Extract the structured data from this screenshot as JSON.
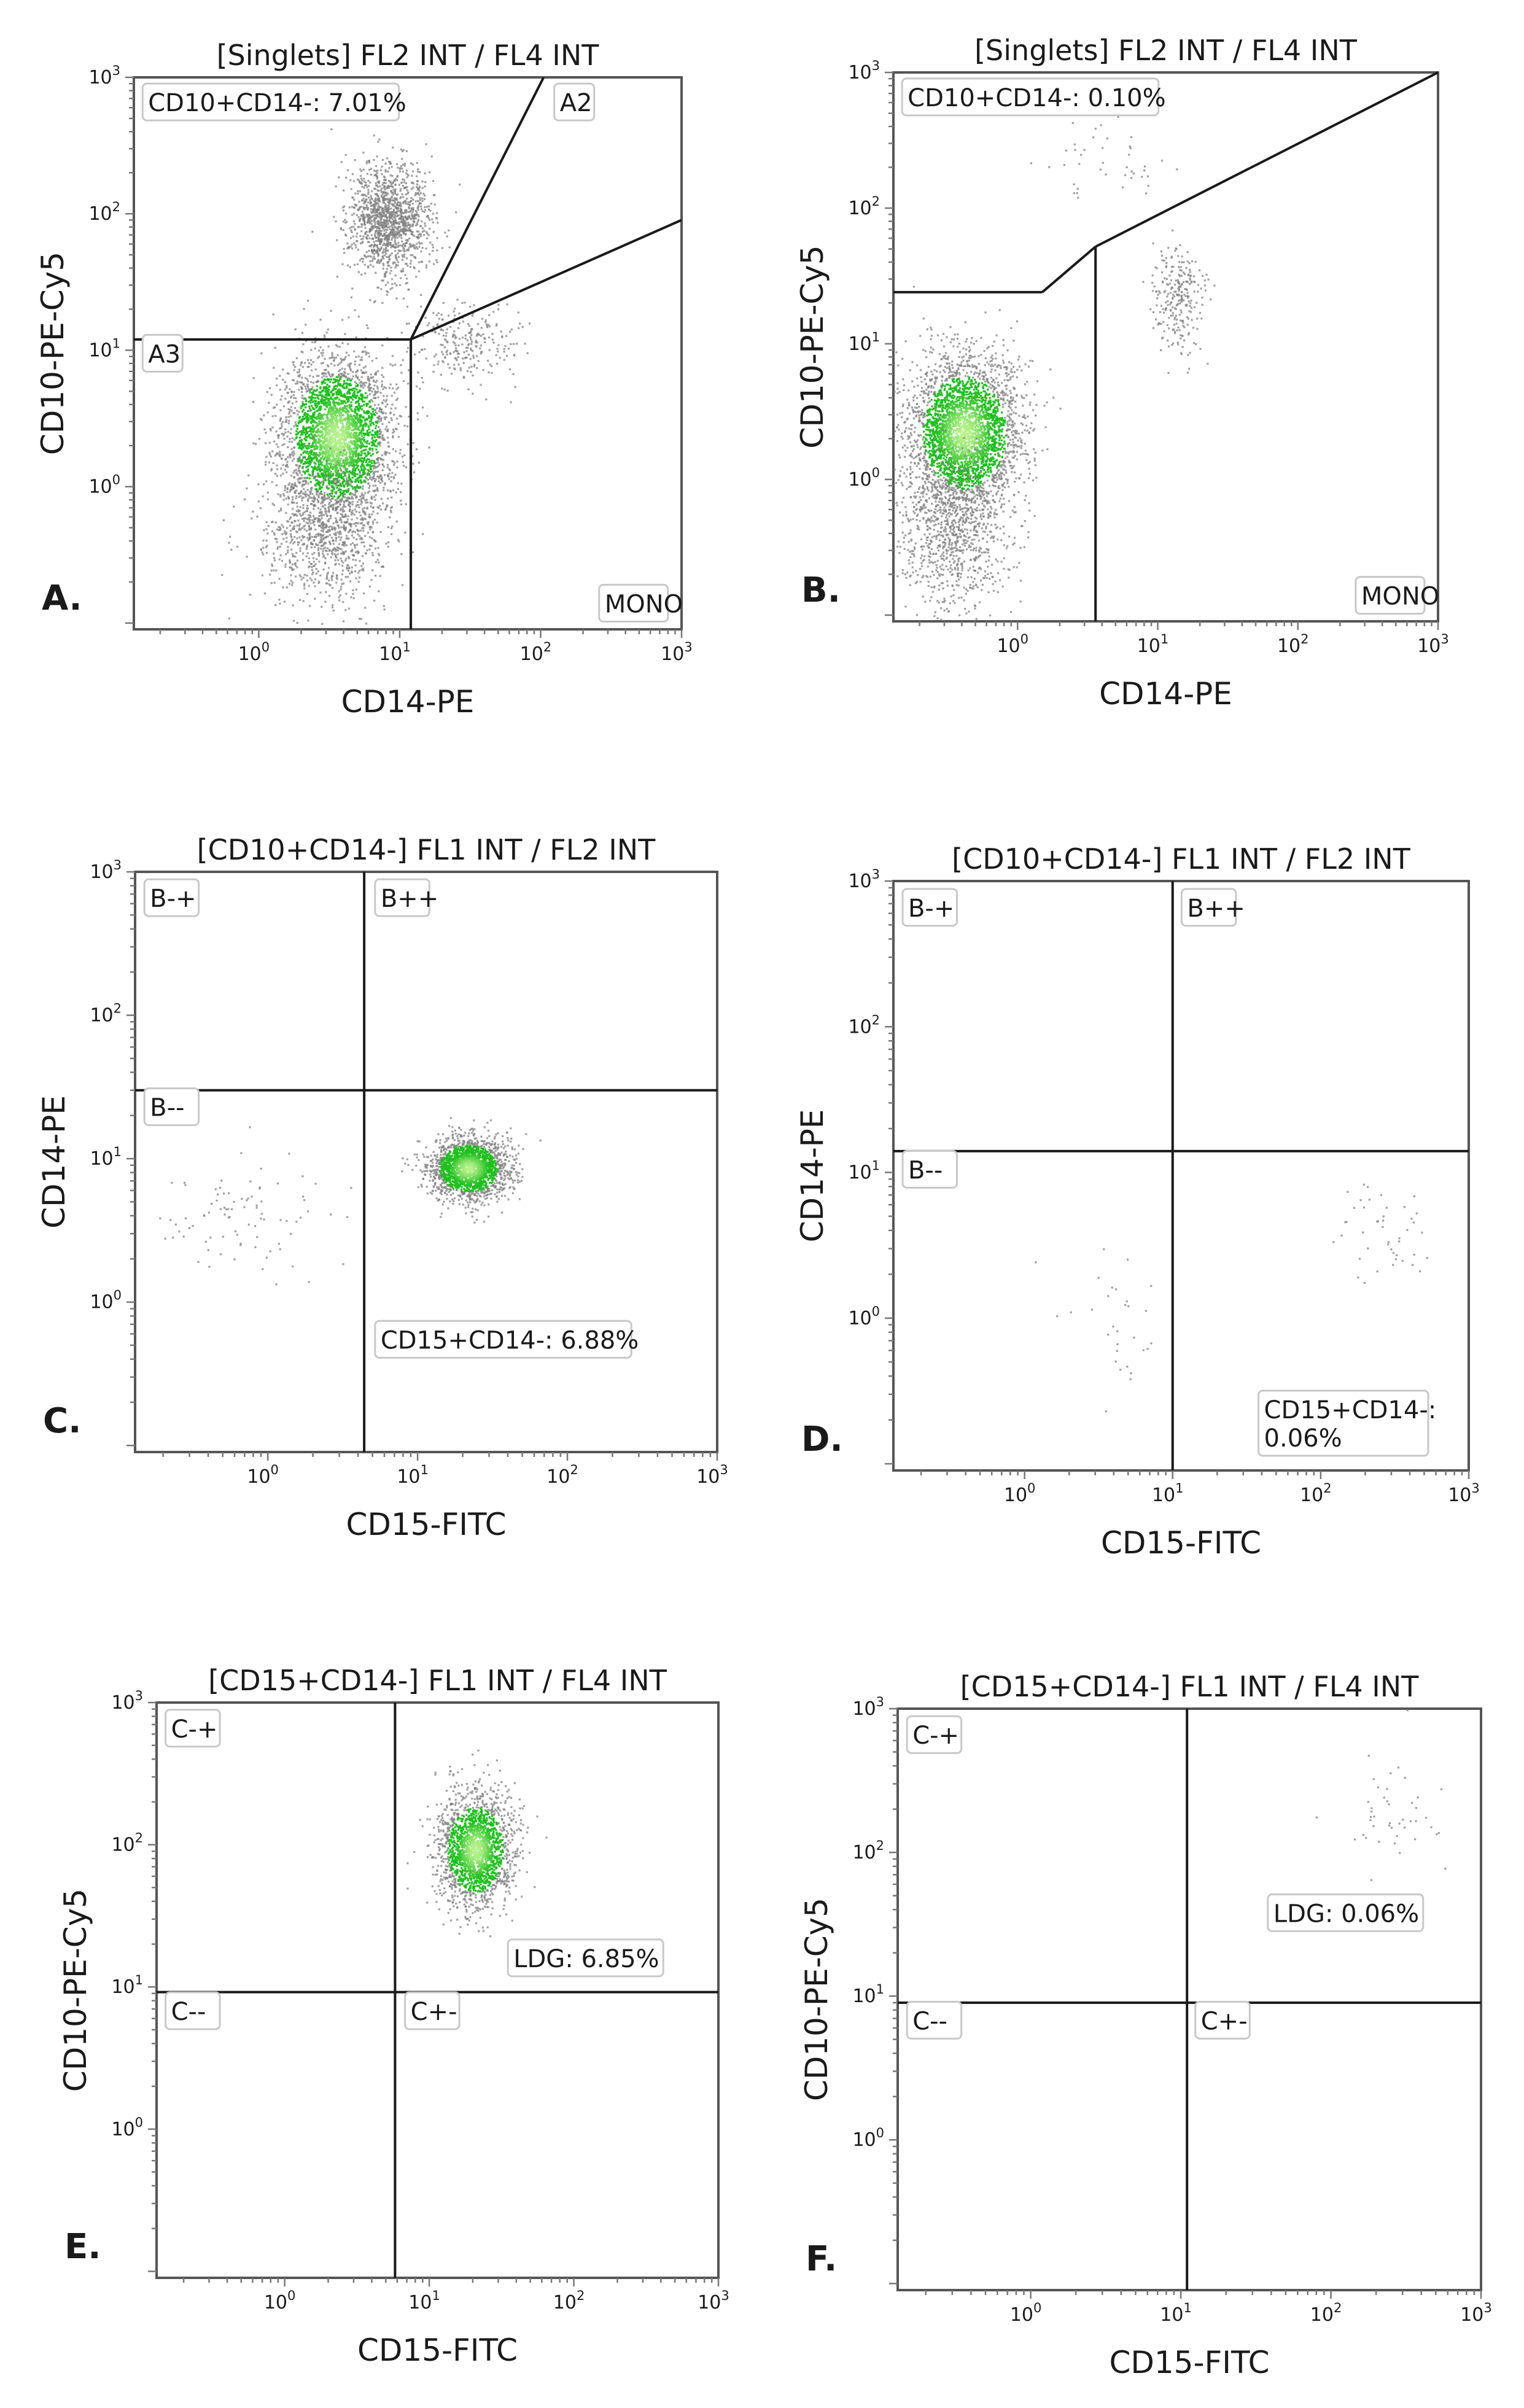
{
  "colors": {
    "event_grey": "#808080",
    "density_green": "#1fbf1f",
    "density_light": "#b8f28c"
  },
  "tick_labels": [
    "10",
    "10",
    "10",
    "10"
  ],
  "tick_exponents": [
    "0",
    "1",
    "2",
    "3"
  ],
  "chart_data": [
    {
      "type": "scatter",
      "panel": "A.",
      "title": "[Singlets] FL2 INT / FL4 INT",
      "xlabel": "CD14-PE",
      "ylabel": "CD10-PE-Cy5",
      "log_x": true,
      "log_y": true,
      "xlim": [
        0.13,
        1000
      ],
      "ylim": [
        0.09,
        1000
      ],
      "gate_lines": [
        [
          [
            0.13,
            12
          ],
          [
            12,
            12
          ]
        ],
        [
          [
            12,
            12
          ],
          [
            12,
            0.09
          ]
        ],
        [
          [
            12,
            12
          ],
          [
            105,
            1000
          ]
        ],
        [
          [
            12,
            12
          ],
          [
            1000,
            90
          ]
        ]
      ],
      "gates": [
        {
          "label": "CD10+CD14-: 7.01%",
          "x": 0.15,
          "y": 660,
          "anchor": "start"
        },
        {
          "label": "A2",
          "x": 125,
          "y": 660,
          "anchor": "start"
        },
        {
          "label": "A3",
          "x": 0.15,
          "y": 9.5,
          "anchor": "start"
        },
        {
          "label": "MONO",
          "x": 800,
          "y": 0.14,
          "anchor": "end"
        }
      ],
      "populations": [
        {
          "cx": 8.5,
          "cy": 90,
          "sx": 0.14,
          "sy": 0.21,
          "n": 1400,
          "density": 0.45
        },
        {
          "cx": 3.6,
          "cy": 2.3,
          "sx": 0.2,
          "sy": 0.3,
          "n": 3200,
          "density": 1
        },
        {
          "cx": 3.0,
          "cy": 0.45,
          "sx": 0.22,
          "sy": 0.28,
          "n": 900,
          "density": 0.2
        },
        {
          "cx": 28,
          "cy": 11,
          "sx": 0.2,
          "sy": 0.15,
          "n": 260,
          "density": 0.1
        }
      ]
    },
    {
      "type": "scatter",
      "panel": "B.",
      "title": "[Singlets] FL2 INT / FL4 INT",
      "xlabel": "CD14-PE",
      "ylabel": "CD10-PE-Cy5",
      "log_x": true,
      "log_y": true,
      "xlim": [
        0.13,
        1000
      ],
      "ylim": [
        0.09,
        1000
      ],
      "gate_lines": [
        [
          [
            0.13,
            24
          ],
          [
            1.5,
            24
          ]
        ],
        [
          [
            1.5,
            24
          ],
          [
            3.6,
            52
          ]
        ],
        [
          [
            3.6,
            52
          ],
          [
            1000,
            1000
          ]
        ],
        [
          [
            3.6,
            52
          ],
          [
            3.6,
            0.09
          ]
        ]
      ],
      "gates": [
        {
          "label": "CD10+CD14-: 0.10%",
          "x": 0.15,
          "y": 660,
          "anchor": "start"
        },
        {
          "label": "MONO",
          "x": 800,
          "y": 0.14,
          "anchor": "end"
        }
      ],
      "populations": [
        {
          "cx": 0.42,
          "cy": 2.2,
          "sx": 0.2,
          "sy": 0.28,
          "n": 3200,
          "density": 1
        },
        {
          "cx": 0.35,
          "cy": 0.4,
          "sx": 0.2,
          "sy": 0.3,
          "n": 900,
          "density": 0.2
        },
        {
          "cx": 14,
          "cy": 22,
          "sx": 0.09,
          "sy": 0.2,
          "n": 260,
          "density": 0.1
        },
        {
          "cx": 4,
          "cy": 230,
          "sx": 0.25,
          "sy": 0.2,
          "n": 45,
          "density": 0.05
        }
      ]
    },
    {
      "type": "scatter",
      "panel": "C.",
      "title": "[CD10+CD14-] FL1 INT / FL2 INT",
      "xlabel": "CD15-FITC",
      "ylabel": "CD14-PE",
      "log_x": true,
      "log_y": true,
      "xlim": [
        0.13,
        1000
      ],
      "ylim": [
        0.09,
        1000
      ],
      "gate_lines": [
        [
          [
            4.4,
            1000
          ],
          [
            4.4,
            0.09
          ]
        ],
        [
          [
            0.13,
            30
          ],
          [
            1000,
            30
          ]
        ]
      ],
      "gates": [
        {
          "label": "B-+",
          "x": 0.15,
          "y": 660,
          "anchor": "start"
        },
        {
          "label": "B++",
          "x": 5.2,
          "y": 660,
          "anchor": "start"
        },
        {
          "label": "B--",
          "x": 0.15,
          "y": 23,
          "anchor": "start"
        },
        {
          "label": "CD15+CD14-: 6.88%",
          "x": 5.2,
          "y": 0.55,
          "anchor": "start"
        }
      ],
      "populations": [
        {
          "cx": 22,
          "cy": 8.5,
          "sx": 0.13,
          "sy": 0.11,
          "n": 2000,
          "density": 1
        },
        {
          "cx": 0.8,
          "cy": 4,
          "sx": 0.3,
          "sy": 0.22,
          "n": 90,
          "density": 0.05
        }
      ]
    },
    {
      "type": "scatter",
      "panel": "D.",
      "title": "[CD10+CD14-] FL1 INT / FL2 INT",
      "xlabel": "CD15-FITC",
      "ylabel": "CD14-PE",
      "log_x": true,
      "log_y": true,
      "xlim": [
        0.13,
        1000
      ],
      "ylim": [
        0.09,
        1000
      ],
      "gate_lines": [
        [
          [
            10,
            1000
          ],
          [
            10,
            0.09
          ]
        ],
        [
          [
            0.13,
            14
          ],
          [
            1000,
            14
          ]
        ]
      ],
      "gates": [
        {
          "label": "B-+",
          "x": 0.15,
          "y": 660,
          "anchor": "start"
        },
        {
          "label": "B++",
          "x": 11.5,
          "y": 660,
          "anchor": "start"
        },
        {
          "label": "B--",
          "x": 0.15,
          "y": 10.5,
          "anchor": "start"
        },
        {
          "label": "CD15+CD14-:",
          "label2": "0.06%",
          "x": 38,
          "y": 0.19,
          "anchor": "start"
        }
      ],
      "populations": [
        {
          "cx": 230,
          "cy": 3.5,
          "sx": 0.15,
          "sy": 0.18,
          "n": 45,
          "density": 0.05
        },
        {
          "cx": 4,
          "cy": 0.9,
          "sx": 0.15,
          "sy": 0.2,
          "n": 30,
          "density": 0.05
        }
      ]
    },
    {
      "type": "scatter",
      "panel": "E.",
      "title": "[CD15+CD14-] FL1 INT / FL4 INT",
      "xlabel": "CD15-FITC",
      "ylabel": "CD10-PE-Cy5",
      "log_x": true,
      "log_y": true,
      "xlim": [
        0.13,
        1000
      ],
      "ylim": [
        0.09,
        1000
      ],
      "gate_lines": [
        [
          [
            5.8,
            1000
          ],
          [
            5.8,
            0.09
          ]
        ],
        [
          [
            0.13,
            9.2
          ],
          [
            1000,
            9.2
          ]
        ]
      ],
      "gates": [
        {
          "label": "C-+",
          "x": 0.15,
          "y": 660,
          "anchor": "start"
        },
        {
          "label": "LDG: 6.85%",
          "x": 35,
          "y": 16,
          "anchor": "start"
        },
        {
          "label": "C--",
          "x": 0.15,
          "y": 6.8,
          "anchor": "start"
        },
        {
          "label": "C+-",
          "x": 6.8,
          "y": 6.8,
          "anchor": "start"
        }
      ],
      "populations": [
        {
          "cx": 21,
          "cy": 92,
          "sx": 0.13,
          "sy": 0.2,
          "n": 2000,
          "density": 1
        }
      ]
    },
    {
      "type": "scatter",
      "panel": "F.",
      "title": "[CD15+CD14-] FL1 INT / FL4 INT",
      "xlabel": "CD15-FITC",
      "ylabel": "CD10-PE-Cy5",
      "log_x": true,
      "log_y": true,
      "xlim": [
        0.13,
        1000
      ],
      "ylim": [
        0.09,
        1000
      ],
      "gate_lines": [
        [
          [
            11,
            1000
          ],
          [
            11,
            0.09
          ]
        ],
        [
          [
            0.13,
            9
          ],
          [
            1000,
            9
          ]
        ]
      ],
      "gates": [
        {
          "label": "C-+",
          "x": 0.15,
          "y": 660,
          "anchor": "start"
        },
        {
          "label": "LDG: 0.06%",
          "x": 38,
          "y": 38,
          "anchor": "start"
        },
        {
          "label": "C--",
          "x": 0.15,
          "y": 6.8,
          "anchor": "start"
        },
        {
          "label": "C+-",
          "x": 12.5,
          "y": 6.8,
          "anchor": "start"
        }
      ],
      "populations": [
        {
          "cx": 250,
          "cy": 180,
          "sx": 0.15,
          "sy": 0.18,
          "n": 45,
          "density": 0.05
        }
      ]
    }
  ]
}
